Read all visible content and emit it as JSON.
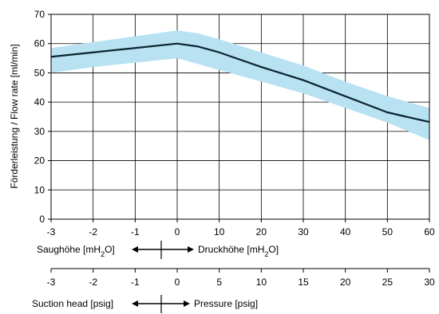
{
  "chart_data": {
    "type": "line",
    "ylabel": "Förderleistung / Flow rate [ml/min]",
    "ylim": [
      0,
      70
    ],
    "yticks": [
      0,
      10,
      20,
      30,
      40,
      50,
      60,
      70
    ],
    "x_positions": [
      -3,
      -2,
      -1,
      0,
      1,
      2,
      3,
      4,
      5,
      6
    ],
    "x_tick_labels_mh2o": [
      "-3",
      "-2",
      "-1",
      "0",
      "10",
      "20",
      "30",
      "40",
      "50",
      "60"
    ],
    "x_tick_labels_psig": [
      "-3",
      "-2",
      "-1",
      "0",
      "5",
      "10",
      "15",
      "20",
      "25",
      "30"
    ],
    "grid": true,
    "series": [
      {
        "x": [
          -3,
          -2,
          -1,
          0,
          0.5,
          1,
          2,
          3,
          4,
          5,
          6
        ],
        "y": [
          55.5,
          57,
          58.5,
          60,
          59,
          57,
          52,
          47.5,
          42,
          36.5,
          33.2
        ],
        "y_upper": [
          58.5,
          60.5,
          62.5,
          64.5,
          63.5,
          61.5,
          57,
          52.5,
          47,
          42,
          38
        ],
        "y_lower": [
          50,
          52,
          53.5,
          55,
          53,
          51,
          47,
          43,
          38,
          33,
          27
        ],
        "color": "#0d2430",
        "band_color": "#b8e1f1"
      }
    ]
  },
  "axis_labels": {
    "mh2o_left": "Saughöhe [mH",
    "mh2o_right": "Druckhöhe [mH",
    "h2o_sub": "2",
    "h2o_tail": "O]",
    "psig_left": "Suction head [psig]",
    "psig_right": "Pressure [psig]"
  }
}
